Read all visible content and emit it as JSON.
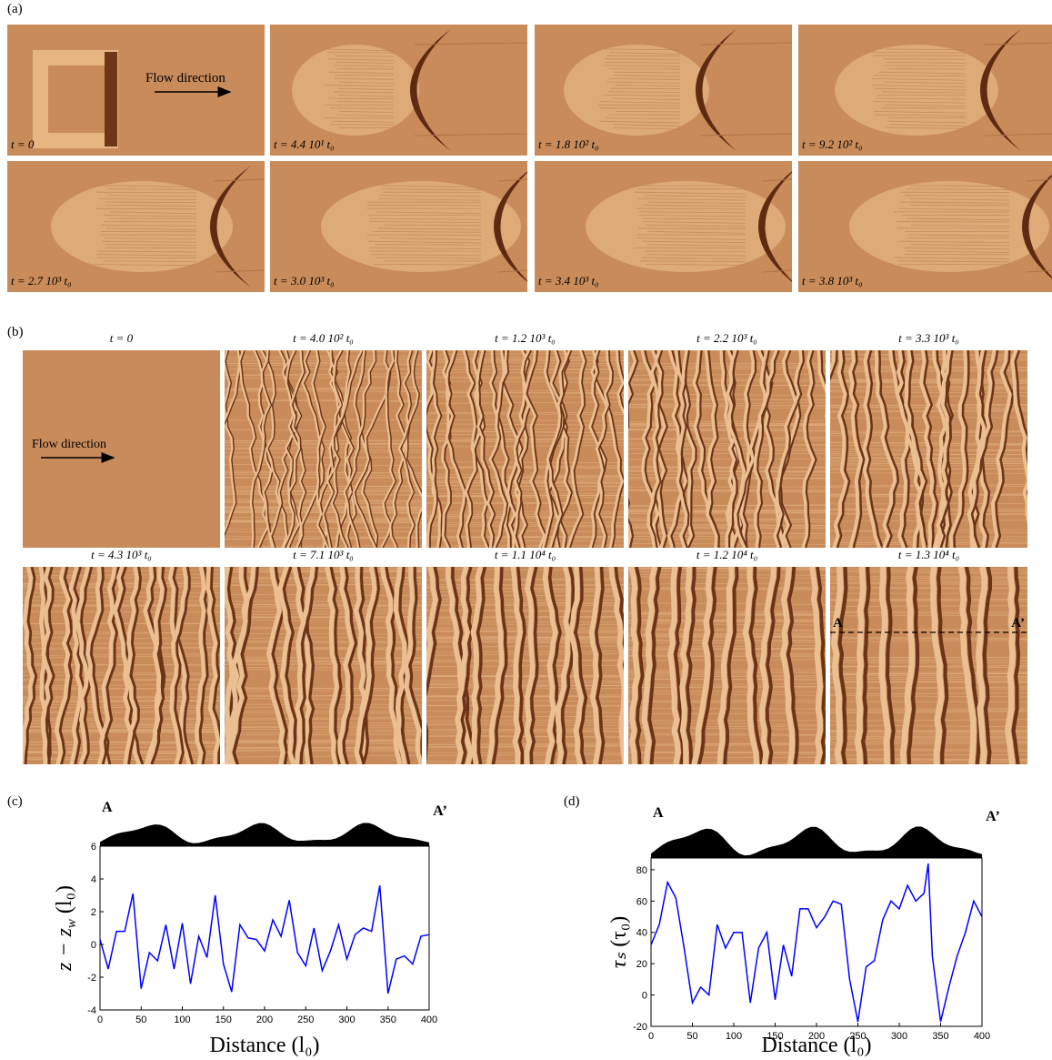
{
  "panel_a": {
    "label": "(a)",
    "annotation": "Flow direction",
    "frames": [
      "t = 0",
      "t = 4.4 10¹ t₀",
      "t = 1.8 10² t₀",
      "t = 9.2 10² t₀",
      "t = 2.7 10³ t₀",
      "t = 3.0 10³ t₀",
      "t = 3.4 10³ t₀",
      "t = 3.8 10³ t₀"
    ]
  },
  "panel_b": {
    "label": "(b)",
    "annotation": "Flow direction",
    "frames": [
      "t = 0",
      "t = 4.0 10² t₀",
      "t = 1.2 10³ t₀",
      "t = 2.2 10³ t₀",
      "t = 3.3 10³ t₀",
      "t = 4.3 10³ t₀",
      "t = 7.1 10³ t₀",
      "t = 1.1 10⁴ t₀",
      "t = 1.2 10⁴ t₀",
      "t = 1.3 10⁴ t₀"
    ],
    "section_labels": [
      "A",
      "A’"
    ]
  },
  "chart_data": [
    {
      "type": "line",
      "label": "(c)",
      "profile_labels": [
        "A",
        "A’"
      ],
      "x_label": "Distance   (l₀)",
      "y_label": {
        "main": "z − z",
        "sub": "w",
        "unit": "   (l₀)"
      },
      "x": [
        0,
        10,
        20,
        30,
        40,
        50,
        60,
        70,
        80,
        90,
        100,
        110,
        120,
        130,
        140,
        150,
        160,
        170,
        180,
        190,
        200,
        210,
        220,
        230,
        240,
        250,
        260,
        270,
        280,
        290,
        300,
        310,
        320,
        330,
        340,
        350,
        360,
        370,
        380,
        390,
        400
      ],
      "values": [
        0.3,
        -1.5,
        0.8,
        0.8,
        3.1,
        -2.7,
        -0.5,
        -1.0,
        1.2,
        -1.5,
        1.3,
        -2.4,
        0.5,
        -0.8,
        3.0,
        -1.2,
        -2.9,
        1.2,
        0.4,
        0.3,
        -0.4,
        1.5,
        0.5,
        2.7,
        -0.5,
        -1.3,
        1.0,
        -1.6,
        -0.4,
        1.2,
        -0.9,
        0.6,
        1.0,
        0.8,
        3.6,
        -3.0,
        -0.9,
        -0.7,
        -1.2,
        0.5,
        0.6
      ],
      "color": "#0000ff",
      "xlim": [
        0,
        400
      ],
      "xticks": [
        0,
        50,
        100,
        150,
        200,
        250,
        300,
        350,
        400
      ],
      "ylim": [
        -4,
        6
      ],
      "yticks": [
        -4,
        -2,
        0,
        2,
        4,
        6
      ]
    },
    {
      "type": "line",
      "label": "(d)",
      "profile_labels": [
        "A",
        "A’"
      ],
      "x_label": "Distance   (l₀)",
      "y_label": {
        "main": "τₛ",
        "sub": "",
        "unit": "   (τ₀)"
      },
      "x": [
        0,
        10,
        20,
        30,
        40,
        50,
        60,
        70,
        80,
        90,
        100,
        110,
        120,
        130,
        140,
        150,
        160,
        170,
        180,
        190,
        200,
        210,
        220,
        230,
        240,
        250,
        260,
        270,
        280,
        290,
        300,
        310,
        320,
        330,
        335,
        340,
        350,
        360,
        370,
        380,
        390,
        400
      ],
      "values": [
        32,
        45,
        72,
        62,
        30,
        -5,
        5,
        0,
        45,
        30,
        40,
        40,
        -5,
        30,
        40,
        -3,
        32,
        12,
        55,
        55,
        43,
        50,
        60,
        58,
        10,
        -17,
        18,
        22,
        48,
        60,
        55,
        70,
        60,
        65,
        84,
        25,
        -17,
        5,
        25,
        40,
        60,
        50
      ],
      "color": "#0000ff",
      "xlim": [
        0,
        400
      ],
      "xticks": [
        0,
        50,
        100,
        150,
        200,
        250,
        300,
        350,
        400
      ],
      "ylim": [
        -20,
        87.5
      ],
      "yticks": [
        -20,
        0,
        20,
        40,
        60,
        80
      ]
    }
  ]
}
